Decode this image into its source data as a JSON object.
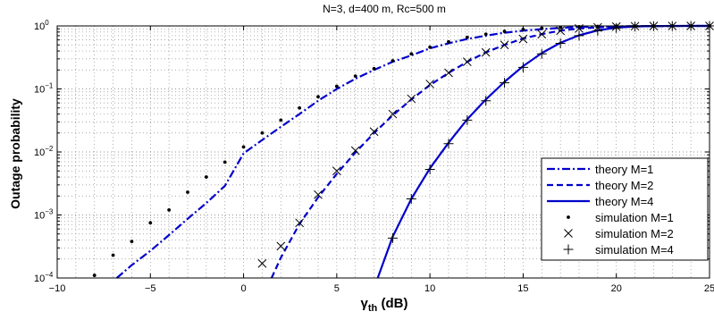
{
  "chart_data": {
    "type": "line",
    "title": "N=3, d=400 m, Rc=500 m",
    "xlabel_main": "γ",
    "xlabel_sub": "th",
    "xlabel_unit": " (dB)",
    "ylabel": "Outage probability",
    "xlim": [
      -10,
      25
    ],
    "ylim": [
      0.0001,
      1
    ],
    "yscale": "log",
    "grid": true,
    "legend_position": "lower-right",
    "x_ticks": [
      "−10",
      "−5",
      "0",
      "5",
      "10",
      "15",
      "20",
      "25"
    ],
    "y_ticks": [
      {
        "base": "10",
        "exp": "0"
      },
      {
        "base": "10",
        "exp": "−1"
      },
      {
        "base": "10",
        "exp": "−2"
      },
      {
        "base": "10",
        "exp": "−3"
      },
      {
        "base": "10",
        "exp": "−4"
      }
    ],
    "series": [
      {
        "name": "theory M=1",
        "kind": "line",
        "dash": "dashdot",
        "color": "#0000cc",
        "x": [
          -6.8,
          -6,
          -5,
          -4,
          -3,
          -2,
          -1,
          0,
          1,
          2,
          3,
          4,
          5,
          6,
          7,
          8,
          9,
          10,
          11,
          12,
          13,
          14,
          15,
          16,
          17,
          18,
          19,
          20,
          21,
          22,
          23,
          24,
          25
        ],
        "y": [
          0.0001,
          0.00016,
          0.00027,
          0.00048,
          0.00087,
          0.00155,
          0.0029,
          0.0095,
          0.0155,
          0.025,
          0.04,
          0.065,
          0.1,
          0.145,
          0.2,
          0.27,
          0.34,
          0.44,
          0.53,
          0.62,
          0.7,
          0.78,
          0.84,
          0.89,
          0.93,
          0.96,
          0.975,
          0.985,
          0.992,
          0.996,
          0.998,
          0.999,
          1.0
        ]
      },
      {
        "name": "theory M=2",
        "kind": "line",
        "dash": "dashed",
        "color": "#0000cc",
        "x": [
          1.5,
          2,
          3,
          4,
          5,
          6,
          7,
          8,
          9,
          10,
          11,
          12,
          13,
          14,
          15,
          16,
          17,
          18,
          19,
          20,
          21,
          22,
          23,
          24,
          25
        ],
        "y": [
          0.0001,
          0.00021,
          0.00072,
          0.0019,
          0.0045,
          0.0098,
          0.02,
          0.038,
          0.068,
          0.115,
          0.18,
          0.27,
          0.38,
          0.5,
          0.63,
          0.74,
          0.84,
          0.91,
          0.95,
          0.975,
          0.988,
          0.995,
          0.998,
          0.999,
          1.0
        ]
      },
      {
        "name": "theory M=4",
        "kind": "line",
        "dash": "solid",
        "color": "#0000cc",
        "x": [
          7.2,
          8,
          9,
          10,
          11,
          12,
          13,
          14,
          15,
          16,
          17,
          18,
          19,
          20,
          21,
          22,
          23,
          24,
          25
        ],
        "y": [
          0.0001,
          0.00045,
          0.0018,
          0.0055,
          0.014,
          0.033,
          0.068,
          0.13,
          0.23,
          0.37,
          0.54,
          0.71,
          0.85,
          0.94,
          0.98,
          0.995,
          0.999,
          1.0,
          1.0
        ]
      },
      {
        "name": "simulation M=1",
        "kind": "marker",
        "marker": "dot",
        "color": "#000000",
        "x": [
          -8,
          -7,
          -6,
          -5,
          -4,
          -3,
          -2,
          -1,
          0,
          1,
          2,
          3,
          4,
          5,
          6,
          7,
          8,
          9,
          10,
          11,
          12,
          13,
          14,
          15,
          16,
          17,
          18,
          19,
          20,
          21,
          22,
          23,
          24,
          25
        ],
        "y": [
          0.00011,
          0.00023,
          0.00038,
          0.00075,
          0.0012,
          0.0023,
          0.004,
          0.0069,
          0.012,
          0.02,
          0.032,
          0.05,
          0.075,
          0.11,
          0.16,
          0.21,
          0.28,
          0.36,
          0.46,
          0.56,
          0.66,
          0.74,
          0.82,
          0.88,
          0.92,
          0.95,
          0.97,
          0.985,
          0.99,
          0.995,
          0.997,
          0.999,
          1.0,
          1.0
        ]
      },
      {
        "name": "simulation M=2",
        "kind": "marker",
        "marker": "x",
        "color": "#000000",
        "x": [
          1,
          2,
          3,
          4,
          5,
          6,
          7,
          8,
          9,
          10,
          11,
          12,
          13,
          14,
          15,
          16,
          17,
          18,
          19,
          20,
          21,
          22,
          23,
          24,
          25
        ],
        "y": [
          0.00017,
          0.00032,
          0.00075,
          0.0021,
          0.005,
          0.0105,
          0.021,
          0.04,
          0.07,
          0.12,
          0.18,
          0.27,
          0.38,
          0.5,
          0.62,
          0.74,
          0.84,
          0.91,
          0.95,
          0.975,
          0.99,
          0.995,
          0.998,
          0.999,
          1.0
        ]
      },
      {
        "name": "simulation M=4",
        "kind": "marker",
        "marker": "plus",
        "color": "#000000",
        "x": [
          8,
          9,
          10,
          11,
          12,
          13,
          14,
          15,
          16,
          17,
          18,
          19,
          20,
          21,
          22,
          23,
          24,
          25
        ],
        "y": [
          0.00043,
          0.0018,
          0.0053,
          0.0135,
          0.032,
          0.065,
          0.125,
          0.22,
          0.36,
          0.53,
          0.7,
          0.84,
          0.93,
          0.975,
          0.99,
          0.997,
          0.999,
          1.0
        ]
      }
    ]
  }
}
